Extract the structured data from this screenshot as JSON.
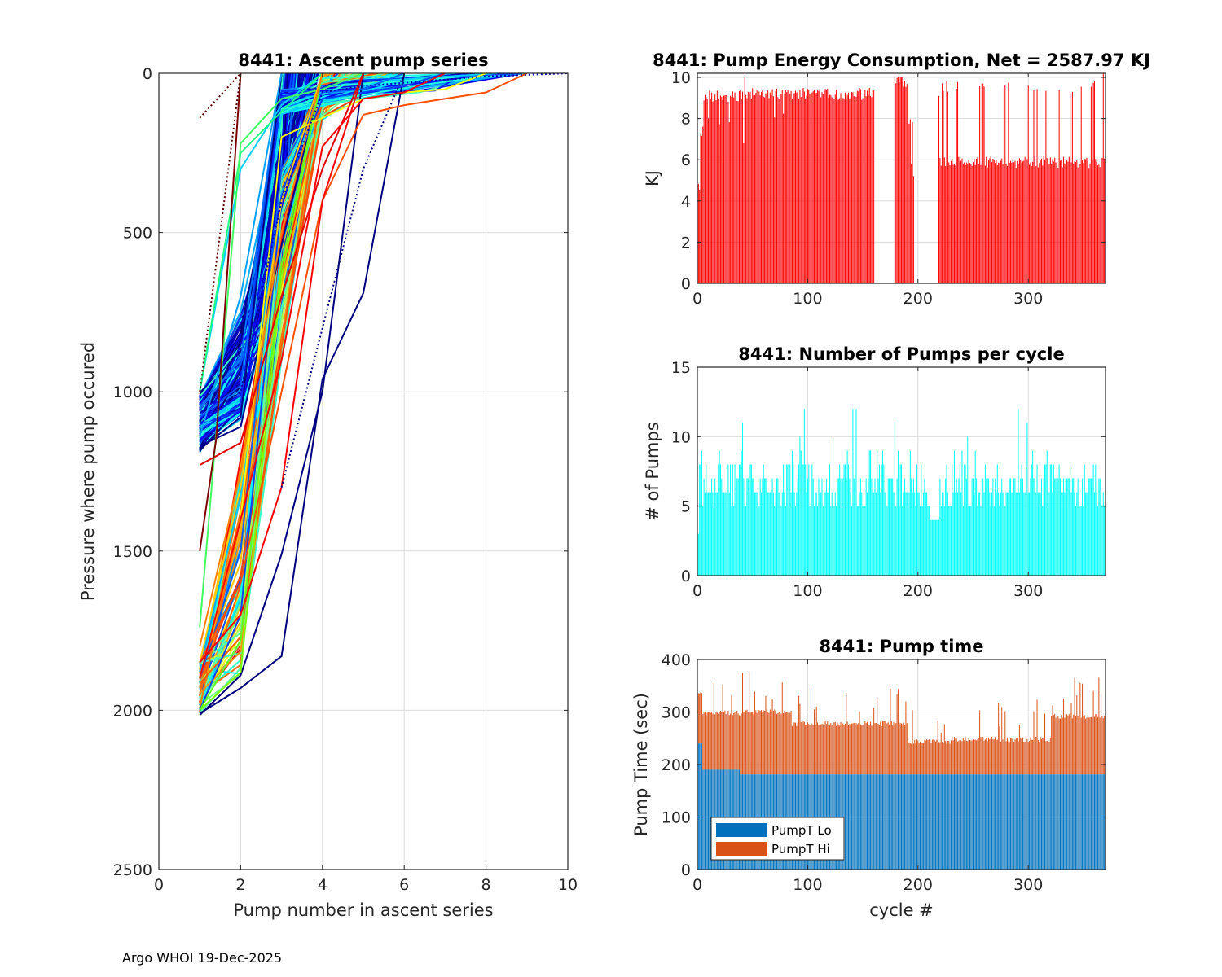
{
  "footer": "Argo WHOI 19-Dec-2025",
  "chart_data": [
    {
      "id": "ascent",
      "type": "line",
      "title": "8441: Ascent pump series",
      "xlabel": "Pump number in ascent series",
      "ylabel": "Pressure where pump occured",
      "xlim": [
        0,
        10
      ],
      "ylim": [
        0,
        2500
      ],
      "y_reversed": true,
      "xticks": [
        0,
        2,
        4,
        6,
        8,
        10
      ],
      "yticks": [
        0,
        500,
        1000,
        1500,
        2000,
        2500
      ],
      "grid": true,
      "colormap": "jet",
      "series": [
        {
          "color": "#00007f",
          "x": [
            1,
            2,
            3,
            4,
            5,
            6
          ],
          "y": [
            2010,
            1930,
            1830,
            960,
            690,
            0
          ]
        },
        {
          "color": "#00007f",
          "x": [
            1,
            2,
            3,
            4,
            5
          ],
          "y": [
            2015,
            1890,
            1510,
            1000,
            0
          ]
        },
        {
          "color": "#0000ff",
          "x": [
            1,
            2,
            3,
            4
          ],
          "y": [
            1150,
            1060,
            420,
            0
          ]
        },
        {
          "color": "#0010ff",
          "x": [
            1,
            2,
            3,
            4
          ],
          "y": [
            1100,
            1010,
            390,
            0
          ]
        },
        {
          "color": "#0030ff",
          "x": [
            1,
            2,
            3
          ],
          "y": [
            1120,
            1040,
            0
          ]
        },
        {
          "color": "#0050ff",
          "x": [
            1,
            2,
            3
          ],
          "y": [
            1080,
            980,
            0
          ]
        },
        {
          "color": "#0070ff",
          "x": [
            1,
            2,
            3
          ],
          "y": [
            1050,
            900,
            0
          ]
        },
        {
          "color": "#00007f",
          "x": [
            1,
            2,
            3
          ],
          "y": [
            1180,
            1080,
            0
          ]
        },
        {
          "color": "#000090",
          "x": [
            1,
            2,
            3,
            4
          ],
          "y": [
            1170,
            1110,
            540,
            0
          ]
        },
        {
          "color": "#00a0ff",
          "x": [
            1,
            2,
            3
          ],
          "y": [
            1140,
            700,
            0
          ]
        },
        {
          "color": "#00d0ff",
          "x": [
            1,
            2,
            3,
            4
          ],
          "y": [
            1000,
            300,
            100,
            0
          ]
        },
        {
          "color": "#20ff80",
          "x": [
            1,
            2,
            3,
            4
          ],
          "y": [
            1000,
            250,
            120,
            0
          ]
        },
        {
          "color": "#40ff60",
          "x": [
            1,
            2,
            3,
            4,
            5
          ],
          "y": [
            1740,
            220,
            80,
            50,
            0
          ]
        },
        {
          "color": "#0060ff",
          "x": [
            1,
            2,
            3,
            4,
            5,
            6
          ],
          "y": [
            1900,
            1500,
            300,
            60,
            50,
            0
          ]
        },
        {
          "color": "#0040ff",
          "x": [
            1,
            2,
            3,
            4,
            5,
            6,
            7
          ],
          "y": [
            2000,
            1700,
            400,
            80,
            60,
            40,
            0
          ]
        },
        {
          "color": "#80ff00",
          "x": [
            1,
            2,
            3,
            4
          ],
          "y": [
            2000,
            1880,
            640,
            0
          ]
        },
        {
          "color": "#60ff20",
          "x": [
            1,
            2,
            3,
            4
          ],
          "y": [
            2000,
            1780,
            600,
            0
          ]
        },
        {
          "color": "#ffff00",
          "x": [
            1,
            2,
            3,
            4,
            5,
            6,
            7,
            8
          ],
          "y": [
            1900,
            1400,
            200,
            140,
            80,
            60,
            50,
            0
          ]
        },
        {
          "color": "#ffd000",
          "x": [
            1,
            2,
            3,
            4
          ],
          "y": [
            1850,
            1300,
            400,
            0
          ]
        },
        {
          "color": "#ff8000",
          "x": [
            1,
            2,
            3,
            4
          ],
          "y": [
            1800,
            1250,
            500,
            0
          ]
        },
        {
          "color": "#ff5000",
          "x": [
            1,
            2,
            3,
            4,
            5,
            6,
            7,
            8,
            9
          ],
          "y": [
            1850,
            1600,
            1000,
            400,
            130,
            100,
            80,
            60,
            0
          ]
        },
        {
          "color": "#ff0000",
          "x": [
            1,
            2,
            3,
            4,
            5
          ],
          "y": [
            1850,
            1700,
            1300,
            400,
            0
          ]
        },
        {
          "color": "#e00000",
          "x": [
            1,
            2,
            3,
            4,
            5
          ],
          "y": [
            1230,
            1160,
            700,
            300,
            0
          ]
        },
        {
          "color": "#ff0000",
          "x": [
            1,
            2,
            3,
            4,
            5,
            6,
            7
          ],
          "y": [
            1900,
            1400,
            900,
            230,
            80,
            60,
            0
          ]
        },
        {
          "color": "#7f0000",
          "x": [
            1,
            1.4,
            2
          ],
          "y": [
            1500,
            1150,
            0
          ]
        },
        {
          "color": "#5a0000",
          "x": [
            1,
            2
          ],
          "y": [
            140,
            0
          ],
          "dotted": true
        },
        {
          "color": "#5a0000",
          "x": [
            1,
            2
          ],
          "y": [
            1000,
            0
          ],
          "dotted": true
        },
        {
          "color": "#00007f",
          "x": [
            3,
            4,
            5,
            6
          ],
          "y": [
            1300,
            800,
            300,
            0
          ],
          "dotted": true
        },
        {
          "color": "#0000b0",
          "x": [
            1,
            2,
            3,
            4,
            5,
            6,
            7,
            8,
            9,
            10
          ],
          "y": [
            1100,
            1000,
            400,
            60,
            40,
            30,
            20,
            10,
            5,
            0
          ],
          "dotted": true
        }
      ]
    },
    {
      "id": "energy",
      "type": "bar",
      "title": "8441: Pump Energy Consumption,  Net = 2587.97 KJ",
      "xlabel": "",
      "ylabel": "KJ",
      "xlim": [
        0,
        370
      ],
      "ylim": [
        0,
        10.2
      ],
      "xticks": [
        0,
        100,
        200,
        300
      ],
      "yticks": [
        0,
        2,
        4,
        6,
        8,
        10
      ],
      "grid": true,
      "color": "#ff0000",
      "segments": [
        {
          "start": 1,
          "end": 2,
          "value": 4.8
        },
        {
          "start": 3,
          "end": 5,
          "value": 7.4
        },
        {
          "start": 6,
          "end": 45,
          "value": 9.1
        },
        {
          "start": 46,
          "end": 160,
          "value": 9.2
        },
        {
          "start": 179,
          "end": 190,
          "value": 9.8
        },
        {
          "start": 191,
          "end": 196,
          "value": 8.0
        },
        {
          "start": 219,
          "end": 370,
          "value": 5.9
        }
      ],
      "spikes": [
        {
          "x": 43,
          "value": 10.0
        },
        {
          "x": 42,
          "value": 6.8
        },
        {
          "x": 184,
          "value": 10.0
        },
        {
          "x": 186,
          "value": 10.0
        },
        {
          "x": 194,
          "value": 5.8
        },
        {
          "x": 196,
          "value": 5.2
        },
        {
          "x": 219,
          "value": 9.1
        },
        {
          "x": 226,
          "value": 9.8
        },
        {
          "x": 258,
          "value": 9.7
        },
        {
          "x": 300,
          "value": 9.6
        },
        {
          "x": 340,
          "value": 9.3
        },
        {
          "x": 360,
          "value": 9.8
        },
        {
          "x": 368,
          "value": 10.2
        }
      ]
    },
    {
      "id": "pumps",
      "type": "bar",
      "title": "8441: Number of Pumps per cycle",
      "xlabel": "",
      "ylabel": "# of Pumps",
      "xlim": [
        0,
        370
      ],
      "ylim": [
        0,
        15
      ],
      "xticks": [
        0,
        100,
        200,
        300
      ],
      "yticks": [
        0,
        5,
        10,
        15
      ],
      "grid": true,
      "color": "#00ffff",
      "typical_range": [
        5,
        8
      ],
      "peaks": [
        {
          "x": 41,
          "value": 11
        },
        {
          "x": 97,
          "value": 12
        },
        {
          "x": 141,
          "value": 12
        },
        {
          "x": 144,
          "value": 12
        },
        {
          "x": 179,
          "value": 11
        },
        {
          "x": 291,
          "value": 12
        },
        {
          "x": 299,
          "value": 11
        },
        {
          "x": 245,
          "value": 10
        },
        {
          "x": 123,
          "value": 10
        },
        {
          "x": 93,
          "value": 10
        }
      ]
    },
    {
      "id": "pumptime",
      "type": "bar",
      "stacked": true,
      "title": "8441: Pump time",
      "xlabel": "cycle #",
      "ylabel": "Pump Time (sec)",
      "xlim": [
        0,
        370
      ],
      "ylim": [
        0,
        400
      ],
      "xticks": [
        0,
        100,
        200,
        300
      ],
      "yticks": [
        0,
        100,
        200,
        300,
        400
      ],
      "grid": true,
      "legend": {
        "position": "bottom-left",
        "entries": [
          "PumpT Lo",
          "PumpT Hi"
        ]
      },
      "series": [
        {
          "name": "PumpT Lo",
          "color": "#0072bd",
          "segments": [
            {
              "start": 1,
              "end": 4,
              "value": 240
            },
            {
              "start": 5,
              "end": 38,
              "value": 190
            },
            {
              "start": 39,
              "end": 370,
              "value": 181
            }
          ]
        },
        {
          "name": "PumpT Hi",
          "color": "#d95319",
          "segments": [
            {
              "start": 1,
              "end": 4,
              "total": 335
            },
            {
              "start": 5,
              "end": 40,
              "total": 298
            },
            {
              "start": 41,
              "end": 85,
              "total": 300
            },
            {
              "start": 86,
              "end": 190,
              "total": 278
            },
            {
              "start": 191,
              "end": 230,
              "total": 243
            },
            {
              "start": 231,
              "end": 320,
              "total": 248
            },
            {
              "start": 321,
              "end": 370,
              "total": 292
            }
          ]
        }
      ]
    }
  ]
}
